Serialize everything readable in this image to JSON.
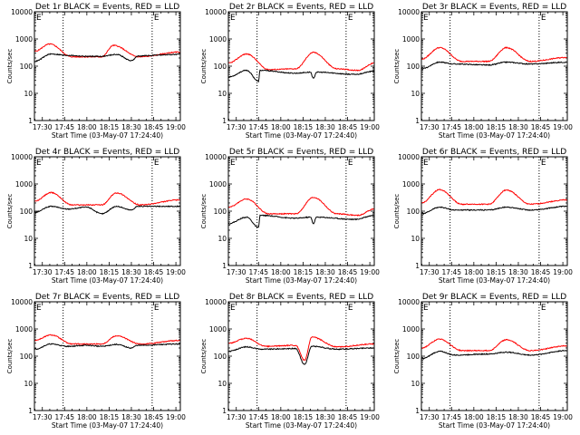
{
  "chart_data": [
    {
      "type": "line",
      "title": "Det 1r BLACK = Events, RED = LLD",
      "ylabel": "Counts/sec",
      "xlabel": "Start Time (03-May-07 17:24:40)",
      "yscale": "log",
      "ylim": [
        1,
        10000
      ],
      "y_ticks": [
        "1",
        "10",
        "100",
        "1000",
        "10000"
      ],
      "x_ticks": [
        "17:30",
        "17:45",
        "18:00",
        "18:15",
        "18:30",
        "18:45",
        "19:00"
      ],
      "x_tick_minutes": [
        30,
        45,
        60,
        75,
        90,
        105,
        120
      ],
      "xlim_minutes": [
        24.67,
        123
      ],
      "vlines_minutes": [
        44,
        104
      ],
      "markers": [
        "E",
        "E"
      ],
      "series": [
        {
          "color": "#ff0000",
          "peaks": [
            [
              24.67,
              350
            ],
            [
              35,
              650
            ],
            [
              50,
              220
            ],
            [
              70,
              220
            ],
            [
              78,
              580
            ],
            [
              95,
              220
            ],
            [
              123,
              330
            ]
          ]
        },
        {
          "color": "#000000",
          "peaks": [
            [
              24.67,
              150
            ],
            [
              36,
              280
            ],
            [
              47,
              250
            ],
            [
              60,
              230
            ],
            [
              70,
              230
            ],
            [
              80,
              270
            ],
            [
              90,
              160
            ],
            [
              95,
              240
            ],
            [
              123,
              270
            ]
          ]
        }
      ]
    },
    {
      "type": "line",
      "title": "Det 2r BLACK = Events, RED = LLD",
      "ylabel": "Counts/sec",
      "xlabel": "Start Time (03-May-07 17:24:40)",
      "yscale": "log",
      "ylim": [
        1,
        10000
      ],
      "y_ticks": [
        "1",
        "10",
        "100",
        "1000",
        "10000"
      ],
      "x_ticks": [
        "17:30",
        "17:45",
        "18:00",
        "18:15",
        "18:30",
        "18:45",
        "19:00"
      ],
      "x_tick_minutes": [
        30,
        45,
        60,
        75,
        90,
        105,
        120
      ],
      "xlim_minutes": [
        24.67,
        123
      ],
      "vlines_minutes": [
        44,
        104
      ],
      "markers": [
        "E",
        "E"
      ],
      "series": [
        {
          "color": "#ff0000",
          "peaks": [
            [
              24.67,
              130
            ],
            [
              37,
              280
            ],
            [
              52,
              75
            ],
            [
              70,
              80
            ],
            [
              82,
              320
            ],
            [
              98,
              80
            ],
            [
              112,
              70
            ],
            [
              123,
              130
            ]
          ]
        },
        {
          "color": "#000000",
          "peaks": [
            [
              24.67,
              40
            ],
            [
              37,
              70
            ],
            [
              45,
              28
            ],
            [
              46,
              70
            ],
            [
              70,
              55
            ],
            [
              80,
              60
            ],
            [
              82,
              35
            ],
            [
              84,
              60
            ],
            [
              110,
              50
            ],
            [
              123,
              65
            ]
          ]
        }
      ]
    },
    {
      "type": "line",
      "title": "Det 3r BLACK = Events, RED = LLD",
      "ylabel": "Counts/sec",
      "xlabel": "Start Time (03-May-07 17:24:40)",
      "yscale": "log",
      "ylim": [
        1,
        10000
      ],
      "y_ticks": [
        "1",
        "10",
        "100",
        "1000",
        "10000"
      ],
      "x_ticks": [
        "17:30",
        "17:45",
        "18:00",
        "18:15",
        "18:30",
        "18:45",
        "19:00"
      ],
      "x_tick_minutes": [
        30,
        45,
        60,
        75,
        90,
        105,
        120
      ],
      "xlim_minutes": [
        24.67,
        123
      ],
      "vlines_minutes": [
        44,
        104
      ],
      "markers": [
        "E",
        "E"
      ],
      "series": [
        {
          "color": "#ff0000",
          "peaks": [
            [
              24.67,
              180
            ],
            [
              37,
              480
            ],
            [
              52,
              150
            ],
            [
              70,
              150
            ],
            [
              82,
              480
            ],
            [
              98,
              150
            ],
            [
              123,
              210
            ]
          ]
        },
        {
          "color": "#000000",
          "peaks": [
            [
              24.67,
              80
            ],
            [
              37,
              140
            ],
            [
              47,
              120
            ],
            [
              70,
              110
            ],
            [
              82,
              140
            ],
            [
              98,
              120
            ],
            [
              123,
              140
            ]
          ]
        }
      ]
    },
    {
      "type": "line",
      "title": "Det 4r BLACK = Events, RED = LLD",
      "ylabel": "Counts/sec",
      "xlabel": "Start Time (03-May-07 17:24:40)",
      "yscale": "log",
      "ylim": [
        1,
        10000
      ],
      "y_ticks": [
        "1",
        "10",
        "100",
        "1000",
        "10000"
      ],
      "x_ticks": [
        "17:30",
        "17:45",
        "18:00",
        "18:15",
        "18:30",
        "18:45",
        "19:00"
      ],
      "x_tick_minutes": [
        30,
        45,
        60,
        75,
        90,
        105,
        120
      ],
      "xlim_minutes": [
        24.67,
        123
      ],
      "vlines_minutes": [
        44,
        104
      ],
      "markers": [
        "E",
        "E"
      ],
      "series": [
        {
          "color": "#ff0000",
          "peaks": [
            [
              24.67,
              230
            ],
            [
              36,
              480
            ],
            [
              50,
              170
            ],
            [
              70,
              170
            ],
            [
              80,
              470
            ],
            [
              96,
              170
            ],
            [
              123,
              260
            ]
          ]
        },
        {
          "color": "#000000",
          "peaks": [
            [
              24.67,
              90
            ],
            [
              36,
              150
            ],
            [
              47,
              120
            ],
            [
              60,
              140
            ],
            [
              70,
              80
            ],
            [
              80,
              150
            ],
            [
              90,
              110
            ],
            [
              94,
              150
            ],
            [
              123,
              150
            ]
          ]
        }
      ]
    },
    {
      "type": "line",
      "title": "Det 5r BLACK = Events, RED = LLD",
      "ylabel": "Counts/sec",
      "xlabel": "Start Time (03-May-07 17:24:40)",
      "yscale": "log",
      "ylim": [
        1,
        10000
      ],
      "y_ticks": [
        "1",
        "10",
        "100",
        "1000",
        "10000"
      ],
      "x_ticks": [
        "17:30",
        "17:45",
        "18:00",
        "18:15",
        "18:30",
        "18:45",
        "19:00"
      ],
      "x_tick_minutes": [
        30,
        45,
        60,
        75,
        90,
        105,
        120
      ],
      "xlim_minutes": [
        24.67,
        123
      ],
      "vlines_minutes": [
        44,
        104
      ],
      "markers": [
        "E",
        "E"
      ],
      "series": [
        {
          "color": "#ff0000",
          "peaks": [
            [
              24.67,
              140
            ],
            [
              37,
              280
            ],
            [
              52,
              80
            ],
            [
              70,
              80
            ],
            [
              82,
              320
            ],
            [
              98,
              80
            ],
            [
              112,
              70
            ],
            [
              123,
              120
            ]
          ]
        },
        {
          "color": "#000000",
          "peaks": [
            [
              24.67,
              35
            ],
            [
              37,
              60
            ],
            [
              45,
              25
            ],
            [
              46,
              70
            ],
            [
              70,
              55
            ],
            [
              80,
              60
            ],
            [
              82,
              35
            ],
            [
              84,
              60
            ],
            [
              110,
              50
            ],
            [
              123,
              70
            ]
          ]
        }
      ]
    },
    {
      "type": "line",
      "title": "Det 6r BLACK = Events, RED = LLD",
      "ylabel": "Counts/sec",
      "xlabel": "Start Time (03-May-07 17:24:40)",
      "yscale": "log",
      "ylim": [
        1,
        10000
      ],
      "y_ticks": [
        "1",
        "10",
        "100",
        "1000",
        "10000"
      ],
      "x_ticks": [
        "17:30",
        "17:45",
        "18:00",
        "18:15",
        "18:30",
        "18:45",
        "19:00"
      ],
      "x_tick_minutes": [
        30,
        45,
        60,
        75,
        90,
        105,
        120
      ],
      "xlim_minutes": [
        24.67,
        123
      ],
      "vlines_minutes": [
        44,
        104
      ],
      "markers": [
        "E",
        "E"
      ],
      "series": [
        {
          "color": "#ff0000",
          "peaks": [
            [
              24.67,
              200
            ],
            [
              37,
              620
            ],
            [
              52,
              180
            ],
            [
              70,
              180
            ],
            [
              82,
              600
            ],
            [
              98,
              180
            ],
            [
              123,
              260
            ]
          ]
        },
        {
          "color": "#000000",
          "peaks": [
            [
              24.67,
              80
            ],
            [
              37,
              140
            ],
            [
              47,
              110
            ],
            [
              70,
              110
            ],
            [
              82,
              140
            ],
            [
              98,
              110
            ],
            [
              123,
              150
            ]
          ]
        }
      ]
    },
    {
      "type": "line",
      "title": "Det 7r BLACK = Events, RED = LLD",
      "ylabel": "Counts/sec",
      "xlabel": "Start Time (03-May-07 17:24:40)",
      "yscale": "log",
      "ylim": [
        1,
        10000
      ],
      "y_ticks": [
        "1",
        "10",
        "100",
        "1000",
        "10000"
      ],
      "x_ticks": [
        "17:30",
        "17:45",
        "18:00",
        "18:15",
        "18:30",
        "18:45",
        "19:00"
      ],
      "x_tick_minutes": [
        30,
        45,
        60,
        75,
        90,
        105,
        120
      ],
      "xlim_minutes": [
        24.67,
        123
      ],
      "vlines_minutes": [
        44,
        104
      ],
      "markers": [
        "E",
        "E"
      ],
      "series": [
        {
          "color": "#ff0000",
          "peaks": [
            [
              24.67,
              380
            ],
            [
              36,
              600
            ],
            [
              50,
              280
            ],
            [
              70,
              280
            ],
            [
              80,
              560
            ],
            [
              96,
              280
            ],
            [
              123,
              380
            ]
          ]
        },
        {
          "color": "#000000",
          "peaks": [
            [
              24.67,
              180
            ],
            [
              36,
              280
            ],
            [
              47,
              230
            ],
            [
              60,
              250
            ],
            [
              70,
              230
            ],
            [
              80,
              270
            ],
            [
              90,
              200
            ],
            [
              94,
              250
            ],
            [
              123,
              280
            ]
          ]
        }
      ]
    },
    {
      "type": "line",
      "title": "Det 8r BLACK = Events, RED = LLD",
      "ylabel": "Counts/sec",
      "xlabel": "Start Time (03-May-07 17:24:40)",
      "yscale": "log",
      "ylim": [
        1,
        10000
      ],
      "y_ticks": [
        "1",
        "10",
        "100",
        "1000",
        "10000"
      ],
      "x_ticks": [
        "17:30",
        "17:45",
        "18:00",
        "18:15",
        "18:30",
        "18:45",
        "19:00"
      ],
      "x_tick_minutes": [
        30,
        45,
        60,
        75,
        90,
        105,
        120
      ],
      "xlim_minutes": [
        24.67,
        123
      ],
      "vlines_minutes": [
        44,
        104
      ],
      "markers": [
        "E",
        "E"
      ],
      "series": [
        {
          "color": "#ff0000",
          "peaks": [
            [
              24.67,
              300
            ],
            [
              37,
              450
            ],
            [
              50,
              230
            ],
            [
              70,
              250
            ],
            [
              76,
              70
            ],
            [
              81,
              500
            ],
            [
              98,
              220
            ],
            [
              123,
              280
            ]
          ]
        },
        {
          "color": "#000000",
          "peaks": [
            [
              24.67,
              150
            ],
            [
              37,
              220
            ],
            [
              47,
              180
            ],
            [
              70,
              190
            ],
            [
              76,
              50
            ],
            [
              81,
              230
            ],
            [
              98,
              180
            ],
            [
              123,
              200
            ]
          ]
        }
      ]
    },
    {
      "type": "line",
      "title": "Det 9r BLACK = Events, RED = LLD",
      "ylabel": "Counts/sec",
      "xlabel": "Start Time (03-May-07 17:24:40)",
      "yscale": "log",
      "ylim": [
        1,
        10000
      ],
      "y_ticks": [
        "1",
        "10",
        "100",
        "1000",
        "10000"
      ],
      "x_ticks": [
        "17:30",
        "17:45",
        "18:00",
        "18:15",
        "18:30",
        "18:45",
        "19:00"
      ],
      "x_tick_minutes": [
        30,
        45,
        60,
        75,
        90,
        105,
        120
      ],
      "xlim_minutes": [
        24.67,
        123
      ],
      "vlines_minutes": [
        44,
        104
      ],
      "markers": [
        "E",
        "E"
      ],
      "series": [
        {
          "color": "#ff0000",
          "peaks": [
            [
              24.67,
              200
            ],
            [
              37,
              420
            ],
            [
              52,
              160
            ],
            [
              70,
              160
            ],
            [
              82,
              400
            ],
            [
              98,
              160
            ],
            [
              123,
              240
            ]
          ]
        },
        {
          "color": "#000000",
          "peaks": [
            [
              24.67,
              80
            ],
            [
              37,
              150
            ],
            [
              47,
              110
            ],
            [
              70,
              120
            ],
            [
              82,
              140
            ],
            [
              98,
              110
            ],
            [
              123,
              160
            ]
          ]
        }
      ]
    }
  ]
}
